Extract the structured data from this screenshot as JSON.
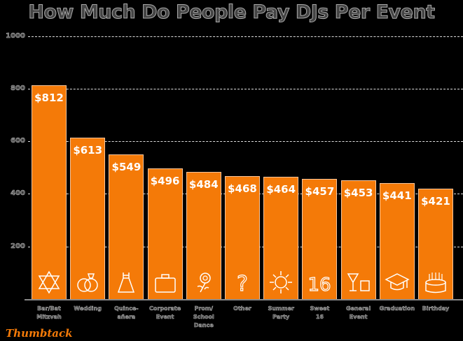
{
  "title": "How Much Do People Pay DJs Per Event",
  "brand": "Thumbtack",
  "colors": {
    "bar": "#f47a08",
    "background": "#000000",
    "gridline": "#dddddd"
  },
  "y_ticks": [
    "1000",
    "800",
    "600",
    "400",
    "200"
  ],
  "bars": [
    {
      "label": "Bar/Bat\nMitzvah",
      "value_label": "$812",
      "icon": "star-of-david-icon"
    },
    {
      "label": "Wedding",
      "value_label": "$613",
      "icon": "wedding-rings-icon"
    },
    {
      "label": "Quince-\nañera",
      "value_label": "$549",
      "icon": "dress-icon"
    },
    {
      "label": "Corporate\nEvent",
      "value_label": "$496",
      "icon": "briefcase-icon"
    },
    {
      "label": "Prom/\nSchool\nDance",
      "value_label": "$484",
      "icon": "rose-icon"
    },
    {
      "label": "Other",
      "value_label": "$468",
      "icon": "question-mark-icon"
    },
    {
      "label": "Summer\nParty",
      "value_label": "$464",
      "icon": "sun-icon"
    },
    {
      "label": "Sweet\n16",
      "value_label": "$457",
      "icon": "sweet-16-icon"
    },
    {
      "label": "General\nEvent",
      "value_label": "$453",
      "icon": "cocktail-icon"
    },
    {
      "label": "Graduation",
      "value_label": "$441",
      "icon": "graduation-cap-icon"
    },
    {
      "label": "Birthday",
      "value_label": "$421",
      "icon": "birthday-cake-icon"
    }
  ],
  "chart_data": {
    "type": "bar",
    "title": "How Much Do People Pay DJs Per Event",
    "categories": [
      "Bar/Bat Mitzvah",
      "Wedding",
      "Quinceañera",
      "Corporate Event",
      "Prom/School Dance",
      "Other",
      "Summer Party",
      "Sweet 16",
      "General Event",
      "Graduation",
      "Birthday"
    ],
    "values": [
      812,
      613,
      549,
      496,
      484,
      468,
      464,
      457,
      453,
      441,
      421
    ],
    "data_labels": [
      "$812",
      "$613",
      "$549",
      "$496",
      "$484",
      "$468",
      "$464",
      "$457",
      "$453",
      "$441",
      "$421"
    ],
    "xlabel": "",
    "ylabel": "",
    "ylim": [
      0,
      1000
    ],
    "yticks": [
      200,
      400,
      600,
      800,
      1000
    ],
    "grid": "dashed horizontal",
    "legend": "none",
    "source_brand": "Thumbtack"
  }
}
